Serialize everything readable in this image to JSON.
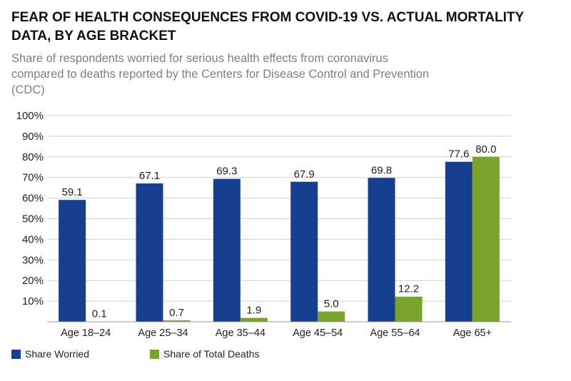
{
  "title": "FEAR OF HEALTH CONSEQUENCES FROM COVID-19 VS. ACTUAL MORTALITY DATA, BY AGE BRACKET",
  "subtitle": "Share of respondents worried for serious health effects from coronavirus compared to deaths reported by the Centers for Disease Control and Prevention (CDC)",
  "colors": {
    "worried": "#173f8f",
    "deaths": "#7aa32c"
  },
  "chart_data": {
    "type": "bar",
    "categories": [
      "Age 18–24",
      "Age 25–34",
      "Age 35–44",
      "Age 45–54",
      "Age 55–64",
      "Age 65+"
    ],
    "series": [
      {
        "name": "Share Worried",
        "values": [
          59.1,
          67.1,
          69.3,
          67.9,
          69.8,
          77.6
        ],
        "labels": [
          "59.1",
          "67.1",
          "69.3",
          "67.9",
          "69.8",
          "77.6"
        ]
      },
      {
        "name": "Share of Total Deaths",
        "values": [
          0.1,
          0.7,
          1.9,
          5.0,
          12.2,
          80.0
        ],
        "labels": [
          "0.1",
          "0.7",
          "1.9",
          "5.0",
          "12.2",
          "80.0"
        ]
      }
    ],
    "ylim": [
      0,
      100
    ],
    "yticks": [
      "10%",
      "20%",
      "30%",
      "40%",
      "50%",
      "60%",
      "70%",
      "80%",
      "90%",
      "100%"
    ],
    "grid": true,
    "legend": "bottom-left"
  }
}
